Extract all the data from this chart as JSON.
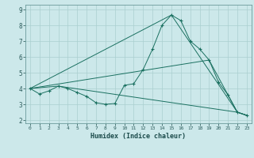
{
  "xlabel": "Humidex (Indice chaleur)",
  "bg_color": "#cce8ea",
  "grid_color": "#aacfcf",
  "line_color": "#1a7060",
  "xlim": [
    -0.5,
    23.5
  ],
  "ylim": [
    1.8,
    9.3
  ],
  "yticks": [
    2,
    3,
    4,
    5,
    6,
    7,
    8,
    9
  ],
  "xticks": [
    0,
    1,
    2,
    3,
    4,
    5,
    6,
    7,
    8,
    9,
    10,
    11,
    12,
    13,
    14,
    15,
    16,
    17,
    18,
    19,
    20,
    21,
    22,
    23
  ],
  "lines": [
    {
      "x": [
        0,
        1,
        2,
        3,
        4,
        5,
        6,
        7,
        8,
        9,
        10,
        11,
        12,
        13,
        14,
        15,
        16,
        17,
        18,
        19,
        20,
        21,
        22,
        23
      ],
      "y": [
        4.0,
        3.65,
        3.85,
        4.15,
        4.0,
        3.75,
        3.5,
        3.1,
        3.0,
        3.05,
        4.2,
        4.3,
        5.2,
        6.5,
        8.0,
        8.65,
        8.3,
        7.0,
        6.5,
        5.8,
        4.4,
        3.6,
        2.5,
        2.3
      ],
      "has_markers": true
    },
    {
      "x": [
        0,
        3,
        22,
        23
      ],
      "y": [
        4.0,
        4.15,
        2.5,
        2.3
      ],
      "has_markers": false
    },
    {
      "x": [
        0,
        19,
        22,
        23
      ],
      "y": [
        4.0,
        5.8,
        2.5,
        2.3
      ],
      "has_markers": false
    },
    {
      "x": [
        0,
        15,
        22,
        23
      ],
      "y": [
        4.0,
        8.65,
        2.5,
        2.3
      ],
      "has_markers": false
    }
  ]
}
